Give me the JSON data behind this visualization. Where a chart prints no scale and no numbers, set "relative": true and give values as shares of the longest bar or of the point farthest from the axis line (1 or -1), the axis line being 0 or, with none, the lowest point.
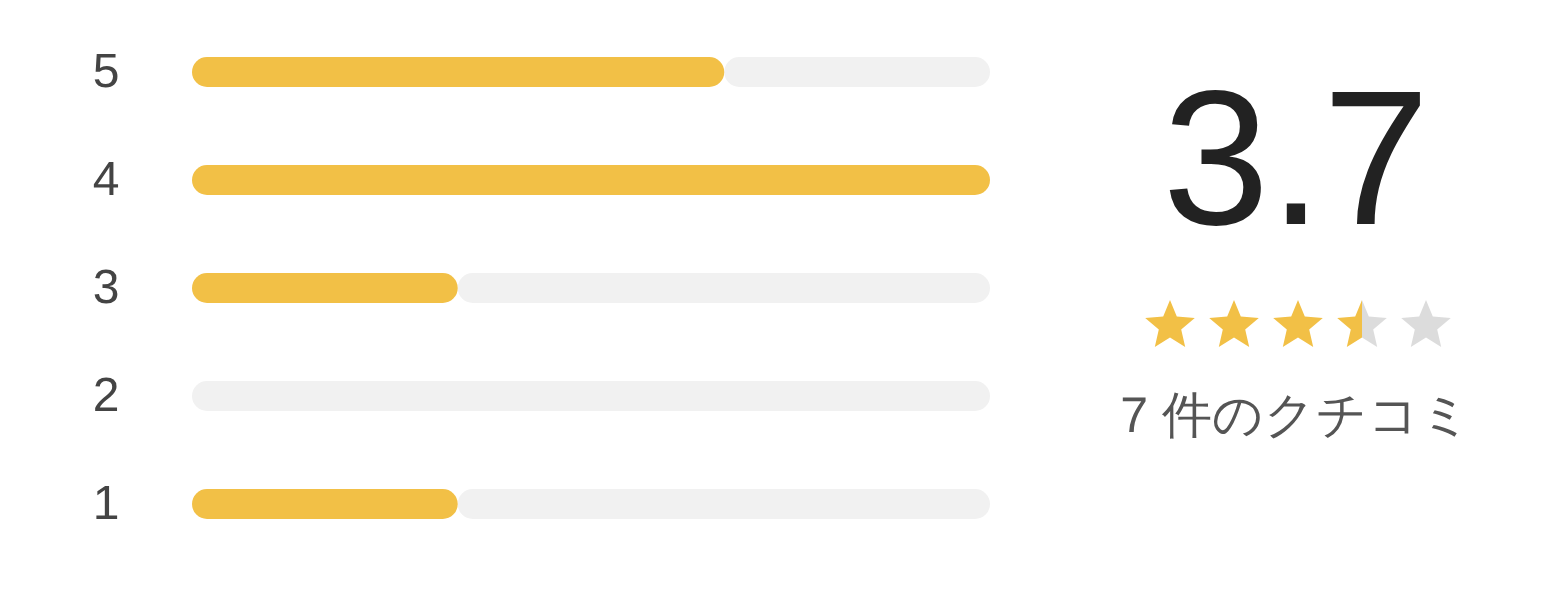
{
  "chart_data": {
    "type": "bar",
    "orientation": "horizontal",
    "relative": true,
    "stacked": true,
    "categories": [
      "5",
      "4",
      "3",
      "2",
      "1"
    ],
    "series": [
      {
        "color": "#f2c046",
        "values": [
          0.667,
          1,
          0.333,
          0,
          0.333
        ]
      },
      {
        "color": "#f1f1f1",
        "values": [
          0.333,
          0,
          0.667,
          1,
          0.667
        ]
      }
    ],
    "annotations": [
      "3.7",
      "7 件のクチコミ"
    ]
  }
}
